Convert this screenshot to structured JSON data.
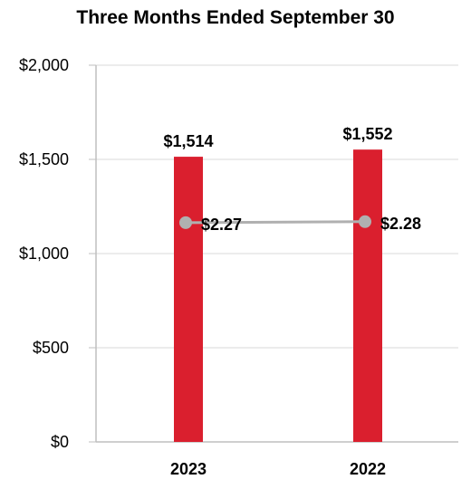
{
  "chart_data": {
    "type": "bar",
    "title": "Three Months Ended September 30",
    "categories": [
      "2023",
      "2022"
    ],
    "ylim": [
      0,
      2000
    ],
    "yticks": [
      0,
      500,
      1000,
      1500,
      2000
    ],
    "ytick_labels": [
      "$0",
      "$500",
      "$1,000",
      "$1,500",
      "$2,000"
    ],
    "grid": true,
    "series": [
      {
        "type": "bar",
        "values": [
          1514,
          1552
        ],
        "data_labels": [
          "$1,514",
          "$1,552"
        ],
        "color": "#DA1F2E"
      },
      {
        "type": "line",
        "values": [
          2.27,
          2.28
        ],
        "data_labels": [
          "$2.27",
          "$2.28"
        ],
        "color": "#B0B0B0",
        "secondary_axis": true,
        "secondary_ylim": [
          0,
          3.9
        ]
      }
    ]
  }
}
